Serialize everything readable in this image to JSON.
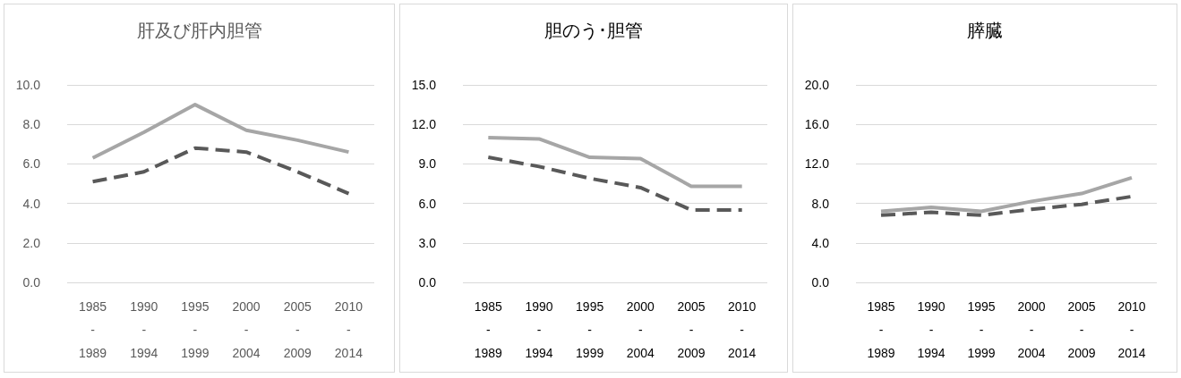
{
  "chart_data": [
    {
      "type": "line",
      "title": "肝及び肝内胆管",
      "categories": [
        "1985\n-\n1989",
        "1990\n-\n1994",
        "1995\n-\n1999",
        "2000\n-\n2004",
        "2005\n-\n2009",
        "2010\n-\n2014"
      ],
      "series": [
        {
          "color": "#a6a6a6",
          "line_style": "solid",
          "values": [
            6.3,
            7.6,
            9.0,
            7.7,
            7.2,
            6.6
          ]
        },
        {
          "color": "#595959",
          "line_style": "dashed",
          "values": [
            5.1,
            5.6,
            6.8,
            6.6,
            5.6,
            4.5
          ]
        }
      ],
      "ylim": [
        0,
        10
      ],
      "yticks": [
        {
          "value": 0,
          "label": "0.0"
        },
        {
          "value": 2,
          "label": "2.0"
        },
        {
          "value": 4,
          "label": "4.0"
        },
        {
          "value": 6,
          "label": "6.0"
        },
        {
          "value": 8,
          "label": "8.0"
        },
        {
          "value": 10,
          "label": "10.0"
        }
      ],
      "grid": "y",
      "marker": "none"
    },
    {
      "type": "line",
      "title": "胆のう･胆管",
      "categories": [
        "1985\n-\n1989",
        "1990\n-\n1994",
        "1995\n-\n1999",
        "2000\n-\n2004",
        "2005\n-\n2009",
        "2010\n-\n2014"
      ],
      "series": [
        {
          "color": "#a6a6a6",
          "line_style": "solid",
          "values": [
            11.0,
            10.9,
            9.5,
            9.4,
            7.3,
            7.3
          ]
        },
        {
          "color": "#595959",
          "line_style": "dashed",
          "values": [
            9.5,
            8.8,
            7.9,
            7.2,
            5.5,
            5.5
          ]
        }
      ],
      "ylim": [
        0,
        15
      ],
      "yticks": [
        {
          "value": 0,
          "label": "0.0"
        },
        {
          "value": 3,
          "label": "3.0"
        },
        {
          "value": 6,
          "label": "6.0"
        },
        {
          "value": 9,
          "label": "9.0"
        },
        {
          "value": 12,
          "label": "12.0"
        },
        {
          "value": 15,
          "label": "15.0"
        }
      ],
      "grid": "y",
      "marker": "none"
    },
    {
      "type": "line",
      "title": "膵臓",
      "categories": [
        "1985\n-\n1989",
        "1990\n-\n1994",
        "1995\n-\n1999",
        "2000\n-\n2004",
        "2005\n-\n2009",
        "2010\n-\n2014"
      ],
      "series": [
        {
          "color": "#a6a6a6",
          "line_style": "solid",
          "values": [
            7.2,
            7.6,
            7.2,
            8.2,
            9.0,
            10.6
          ]
        },
        {
          "color": "#595959",
          "line_style": "dashed",
          "values": [
            6.8,
            7.1,
            6.8,
            7.4,
            7.9,
            8.7
          ]
        }
      ],
      "ylim": [
        0,
        20
      ],
      "yticks": [
        {
          "value": 0,
          "label": "0.0"
        },
        {
          "value": 4,
          "label": "4.0"
        },
        {
          "value": 8,
          "label": "8.0"
        },
        {
          "value": 12,
          "label": "12.0"
        },
        {
          "value": 16,
          "label": "16.0"
        },
        {
          "value": 20,
          "label": "20.0"
        }
      ],
      "grid": "y",
      "marker": "none"
    }
  ]
}
